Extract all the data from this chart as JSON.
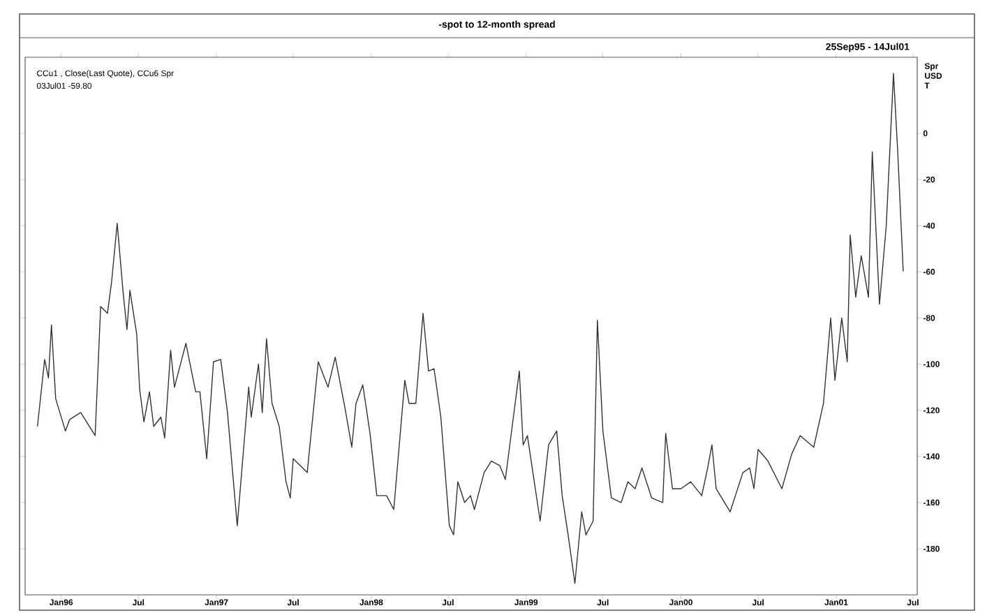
{
  "chart_data": {
    "type": "line",
    "title": "-spot to 12-month spread",
    "subtitle": "25Sep95 - 14Jul01",
    "ylabel": "Spr USD T",
    "annotations": [
      "CCu1 , Close(Last Quote), CCu6 Spr",
      "03Jul01 -59.80"
    ],
    "color": "#333333",
    "marker": "none",
    "x": [
      "1995-11-06",
      "1995-11-23",
      "1995-12-02",
      "1995-12-09",
      "1995-12-19",
      "1996-01-11",
      "1996-01-21",
      "1996-02-16",
      "1996-03-21",
      "1996-04-03",
      "1996-04-19",
      "1996-04-29",
      "1996-05-12",
      "1996-05-26",
      "1996-06-04",
      "1996-06-11",
      "1996-06-27",
      "1996-07-04",
      "1996-07-14",
      "1996-07-27",
      "1996-08-06",
      "1996-08-23",
      "1996-09-01",
      "1996-09-15",
      "1996-09-24",
      "1996-10-21",
      "1996-11-13",
      "1996-11-23",
      "1996-12-09",
      "1996-12-25",
      "1997-01-11",
      "1997-01-27",
      "1997-02-19",
      "1997-03-18",
      "1997-03-24",
      "1997-04-10",
      "1997-04-19",
      "1997-04-29",
      "1997-05-12",
      "1997-05-29",
      "1997-06-14",
      "1997-06-24",
      "1997-07-01",
      "1997-08-03",
      "1997-08-29",
      "1997-09-21",
      "1997-10-08",
      "1997-10-31",
      "1997-11-16",
      "1997-11-26",
      "1997-12-12",
      "1997-12-29",
      "1998-01-14",
      "1998-02-06",
      "1998-02-23",
      "1998-03-21",
      "1998-03-31",
      "1998-04-16",
      "1998-05-03",
      "1998-05-16",
      "1998-05-29",
      "1998-06-14",
      "1998-07-04",
      "1998-07-14",
      "1998-07-24",
      "1998-08-09",
      "1998-08-23",
      "1998-09-01",
      "1998-09-24",
      "1998-10-11",
      "1998-10-31",
      "1998-11-13",
      "1998-12-02",
      "1998-12-16",
      "1998-12-25",
      "1999-01-04",
      "1999-02-03",
      "1999-02-23",
      "1999-03-14",
      "1999-03-27",
      "1999-04-10",
      "1999-04-26",
      "1999-05-12",
      "1999-05-22",
      "1999-06-08",
      "1999-06-18",
      "1999-07-01",
      "1999-07-21",
      "1999-08-13",
      "1999-08-29",
      "1999-09-15",
      "1999-10-01",
      "1999-10-24",
      "1999-11-19",
      "1999-11-26",
      "1999-12-12",
      "2000-01-01",
      "2000-01-24",
      "2000-02-19",
      "2000-03-04",
      "2000-03-14",
      "2000-03-24",
      "2000-04-26",
      "2000-05-26",
      "2000-06-11",
      "2000-06-21",
      "2000-07-01",
      "2000-07-24",
      "2000-08-26",
      "2000-09-18",
      "2000-10-08",
      "2000-11-09",
      "2000-12-02",
      "2000-12-19",
      "2000-12-29",
      "2001-01-14",
      "2001-01-27",
      "2001-02-03",
      "2001-02-16",
      "2001-03-01",
      "2001-03-18",
      "2001-03-27",
      "2001-04-13",
      "2001-04-29",
      "2001-05-16",
      "2001-05-26",
      "2001-06-08"
    ],
    "values": [
      -127,
      -98,
      -106,
      -83,
      -115,
      -129,
      -124,
      -121,
      -131,
      -75,
      -78,
      -64,
      -39,
      -69,
      -85,
      -68,
      -87,
      -111,
      -125,
      -112,
      -127,
      -123,
      -132,
      -94,
      -110,
      -91,
      -112,
      -112,
      -141,
      -99,
      -98,
      -121,
      -170,
      -110,
      -123,
      -100,
      -121,
      -89,
      -117,
      -127,
      -151,
      -158,
      -141,
      -147,
      -99,
      -110,
      -97,
      -119,
      -136,
      -117,
      -109,
      -130,
      -157,
      -157,
      -163,
      -107,
      -117,
      -117,
      -78,
      -103,
      -102,
      -123,
      -170,
      -174,
      -151,
      -160,
      -157,
      -163,
      -147,
      -142,
      -144,
      -150,
      -123,
      -103,
      -135,
      -131,
      -168,
      -135,
      -129,
      -157,
      -174,
      -195,
      -164,
      -174,
      -168,
      -81,
      -129,
      -158,
      -160,
      -151,
      -154,
      -145,
      -158,
      -160,
      -130,
      -154,
      -154,
      -151,
      -157,
      -145,
      -135,
      -154,
      -164,
      -147,
      -145,
      -154,
      -137,
      -142,
      -154,
      -139,
      -131,
      -136,
      -117,
      -80,
      -107,
      -80,
      -99,
      -44,
      -71,
      -53,
      -71,
      -8,
      -74,
      -40,
      26,
      -8,
      -59.8
    ],
    "xlim": [
      "1995-10-08",
      "2001-07-11"
    ],
    "xticks": [
      {
        "value": "1996-01-01",
        "label": "Jan96"
      },
      {
        "value": "1996-07-01",
        "label": "Jul"
      },
      {
        "value": "1997-01-01",
        "label": "Jan97"
      },
      {
        "value": "1997-07-01",
        "label": "Jul"
      },
      {
        "value": "1998-01-01",
        "label": "Jan98"
      },
      {
        "value": "1998-07-01",
        "label": "Jul"
      },
      {
        "value": "1999-01-01",
        "label": "Jan99"
      },
      {
        "value": "1999-07-01",
        "label": "Jul"
      },
      {
        "value": "2000-01-01",
        "label": "Jan00"
      },
      {
        "value": "2000-07-01",
        "label": "Jul"
      },
      {
        "value": "2001-01-01",
        "label": "Jan01"
      },
      {
        "value": "2001-07-01",
        "label": "Jul"
      }
    ],
    "ylim": [
      -200,
      33
    ],
    "yticks": [
      0,
      -20,
      -40,
      -60,
      -80,
      -100,
      -120,
      -140,
      -160,
      -180
    ]
  }
}
